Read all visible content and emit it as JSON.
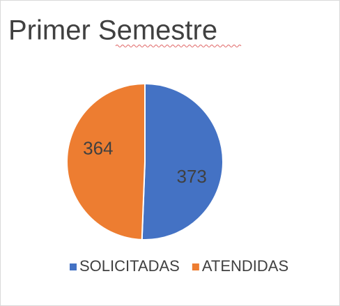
{
  "chart_data": {
    "type": "pie",
    "title": "Primer Semestre",
    "categories": [
      "SOLICITADAS",
      "ATENDIDAS"
    ],
    "values": [
      373,
      364
    ],
    "colors": [
      "#4472c4",
      "#ed7d31"
    ],
    "legend": "bottom"
  }
}
